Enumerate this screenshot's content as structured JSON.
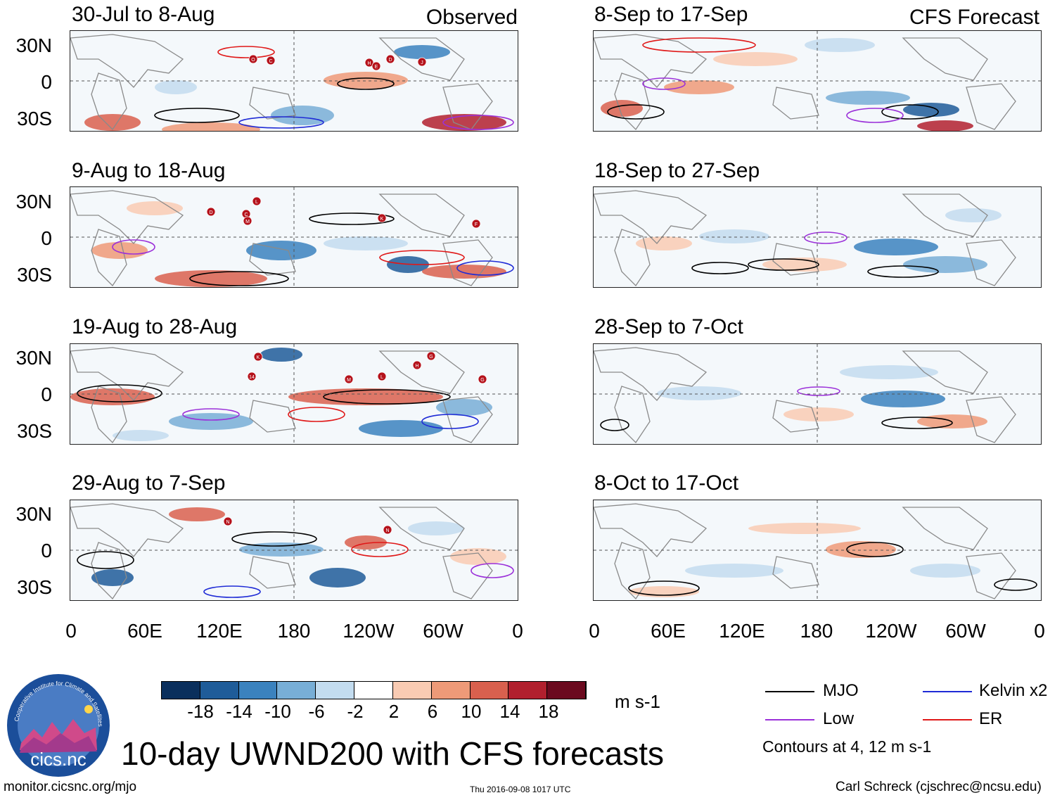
{
  "header": {
    "observed_label": "Observed",
    "forecast_label": "CFS Forecast"
  },
  "panels_left": [
    {
      "title": "30-Jul to 8-Aug"
    },
    {
      "title": "9-Aug to 18-Aug"
    },
    {
      "title": "19-Aug to 28-Aug"
    },
    {
      "title": "29-Aug to 7-Sep"
    }
  ],
  "panels_right": [
    {
      "title": "8-Sep to 17-Sep"
    },
    {
      "title": "18-Sep to 27-Sep"
    },
    {
      "title": "28-Sep to 7-Oct"
    },
    {
      "title": "8-Oct to 17-Oct"
    }
  ],
  "axes": {
    "y_ticks": [
      "30N",
      "0",
      "30S"
    ],
    "x_ticks": [
      "0",
      "60E",
      "120E",
      "180",
      "120W",
      "60W",
      "0"
    ]
  },
  "colorbar": {
    "ticks": [
      "-18",
      "-14",
      "-10",
      "-6",
      "-2",
      "2",
      "6",
      "10",
      "14",
      "18"
    ],
    "colors": [
      "#0a2f5c",
      "#1f5c99",
      "#3b82be",
      "#78aed6",
      "#c3dcef",
      "#ffffff",
      "#f9cbb3",
      "#ee9a78",
      "#d9604e",
      "#b1202e",
      "#6b0a1f"
    ],
    "units": "m s-1"
  },
  "legend": {
    "items": [
      {
        "label": "MJO",
        "color": "#000000"
      },
      {
        "label": "Kelvin x2",
        "color": "#1f2bd6"
      },
      {
        "label": "Low",
        "color": "#9b30d9"
      },
      {
        "label": "ER",
        "color": "#e01818"
      }
    ],
    "contours_note": "Contours at 4, 12 m s-1"
  },
  "storm_markers": [
    {
      "panel": 0,
      "letters": [
        "O",
        "C",
        "H",
        "D",
        "J",
        "E"
      ]
    },
    {
      "panel": 1,
      "letters": [
        "D",
        "L",
        "C",
        "M",
        "K",
        "F"
      ]
    },
    {
      "panel": 2,
      "letters": [
        "K",
        "14",
        "M",
        "L",
        "H",
        "G",
        "G"
      ]
    },
    {
      "panel": 3,
      "letters": [
        "N",
        "N"
      ]
    }
  ],
  "footer": {
    "title": "10-day UWND200 with CFS forecasts",
    "url": "monitor.cicsnc.org/mjo",
    "timestamp": "Thu 2016-09-08 1017 UTC",
    "author": "Carl Schreck (cjschrec@ncsu.edu)",
    "logo_text": "cics.nc",
    "logo_ring_text": "Cooperative Institute for Climate and Satellites"
  }
}
